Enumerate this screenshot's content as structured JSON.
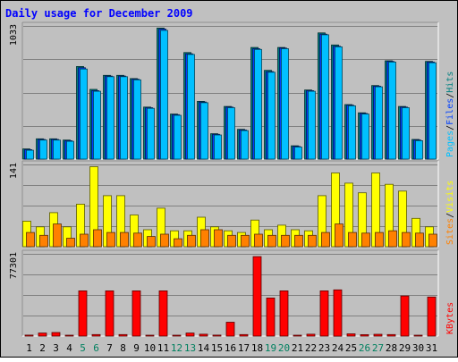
{
  "chart_data": {
    "type": "bar",
    "title": "Daily usage for December 2009",
    "days": [
      "1",
      "2",
      "3",
      "4",
      "5",
      "6",
      "7",
      "8",
      "9",
      "10",
      "11",
      "12",
      "13",
      "14",
      "15",
      "16",
      "17",
      "18",
      "19",
      "20",
      "21",
      "22",
      "23",
      "24",
      "25",
      "26",
      "27",
      "28",
      "29",
      "30",
      "31"
    ],
    "weekend_days": [
      "5",
      "6",
      "12",
      "13",
      "19",
      "20",
      "26",
      "27"
    ],
    "panels": [
      {
        "name": "hits-files-pages",
        "max_label": "1033",
        "ylim": [
          0,
          1050
        ],
        "axis_labels": [
          {
            "text": "Pages",
            "color": "#00c0ff"
          },
          {
            "text": "Files",
            "color": "#0040ff"
          },
          {
            "text": "Hits",
            "color": "#008080"
          }
        ],
        "series": [
          {
            "name": "Hits",
            "color": "#008080",
            "values": [
              80,
              160,
              160,
              150,
              730,
              550,
              660,
              660,
              635,
              410,
              1033,
              355,
              840,
              455,
              200,
              415,
              235,
              880,
              700,
              880,
              105,
              545,
              995,
              900,
              430,
              365,
              580,
              775,
              415,
              155,
              770
            ]
          },
          {
            "name": "Files",
            "color": "#0040ff",
            "values": [
              75,
              155,
              155,
              145,
              720,
              540,
              655,
              655,
              630,
              405,
              1025,
              350,
              830,
              450,
              195,
              410,
              230,
              870,
              690,
              875,
              100,
              540,
              985,
              890,
              425,
              360,
              575,
              770,
              410,
              150,
              765
            ]
          },
          {
            "name": "Pages",
            "color": "#00c0ff",
            "values": [
              70,
              150,
              150,
              140,
              710,
              535,
              650,
              650,
              625,
              400,
              1015,
              345,
              825,
              445,
              190,
              405,
              225,
              865,
              685,
              870,
              95,
              535,
              980,
              885,
              420,
              355,
              570,
              765,
              405,
              145,
              760
            ]
          }
        ]
      },
      {
        "name": "visits-sites",
        "max_label": "141",
        "ylim": [
          0,
          145
        ],
        "axis_labels": [
          {
            "text": "Sites",
            "color": "#ff8000"
          },
          {
            "text": "Visits",
            "color": "#ffff00"
          }
        ],
        "series": [
          {
            "name": "Visits",
            "color": "#ffff00",
            "values": [
              45,
              35,
              60,
              35,
              75,
              141,
              90,
              90,
              56,
              30,
              68,
              28,
              28,
              52,
              35,
              28,
              25,
              47,
              30,
              38,
              30,
              28,
              90,
              130,
              112,
              95,
              130,
              110,
              98,
              50,
              35
            ]
          },
          {
            "name": "Sites",
            "color": "#ff8000",
            "values": [
              25,
              20,
              40,
              15,
              22,
              30,
              25,
              25,
              24,
              18,
              22,
              14,
              20,
              30,
              30,
              20,
              20,
              22,
              20,
              20,
              20,
              20,
              25,
              40,
              25,
              24,
              25,
              28,
              25,
              24,
              22
            ]
          }
        ]
      },
      {
        "name": "kbytes",
        "max_label": "77301",
        "ylim": [
          0,
          80000
        ],
        "axis_labels": [
          {
            "text": "KBytes",
            "color": "#ff0000"
          }
        ],
        "series": [
          {
            "name": "KBytes",
            "color": "#ff0000",
            "values": [
              1000,
              3000,
              3500,
              500,
              44000,
              1500,
              44000,
              1500,
              44000,
              600,
              44000,
              800,
              3000,
              1800,
              1000,
              13500,
              1500,
              77301,
              37000,
              44000,
              800,
              1800,
              44000,
              45000,
              2200,
              1400,
              1700,
              1500,
              39000,
              700,
              38000
            ]
          }
        ]
      }
    ]
  }
}
